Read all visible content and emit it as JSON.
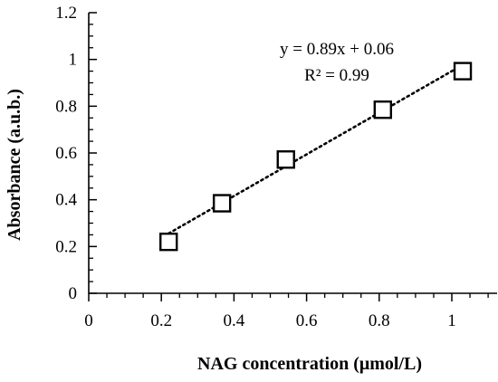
{
  "chart_data": {
    "type": "scatter",
    "xlabel": "NAG concentration (μmol/L)",
    "ylabel": "Absorbance (a.u.b.)",
    "xlim": [
      0,
      1.1
    ],
    "ylim": [
      0,
      1.2
    ],
    "x_ticks": [
      "0",
      "0.2",
      "0.4",
      "0.6",
      "0.8",
      "1"
    ],
    "y_ticks": [
      "0",
      "0.2",
      "0.4",
      "0.6",
      "0.8",
      "1",
      "1.2"
    ],
    "grid": false,
    "marker": "open-square",
    "series": [
      {
        "x": [
          0.22,
          0.367,
          0.543,
          0.81,
          1.03
        ],
        "y": [
          0.22,
          0.385,
          0.572,
          0.785,
          0.95
        ]
      }
    ],
    "trendline": {
      "style": "dotted",
      "slope": 0.89,
      "intercept": 0.06,
      "x_range": [
        0.22,
        1.03
      ]
    },
    "annotations": {
      "equation": "y = 0.89x + 0.06",
      "r_squared": "R² = 0.99"
    }
  }
}
